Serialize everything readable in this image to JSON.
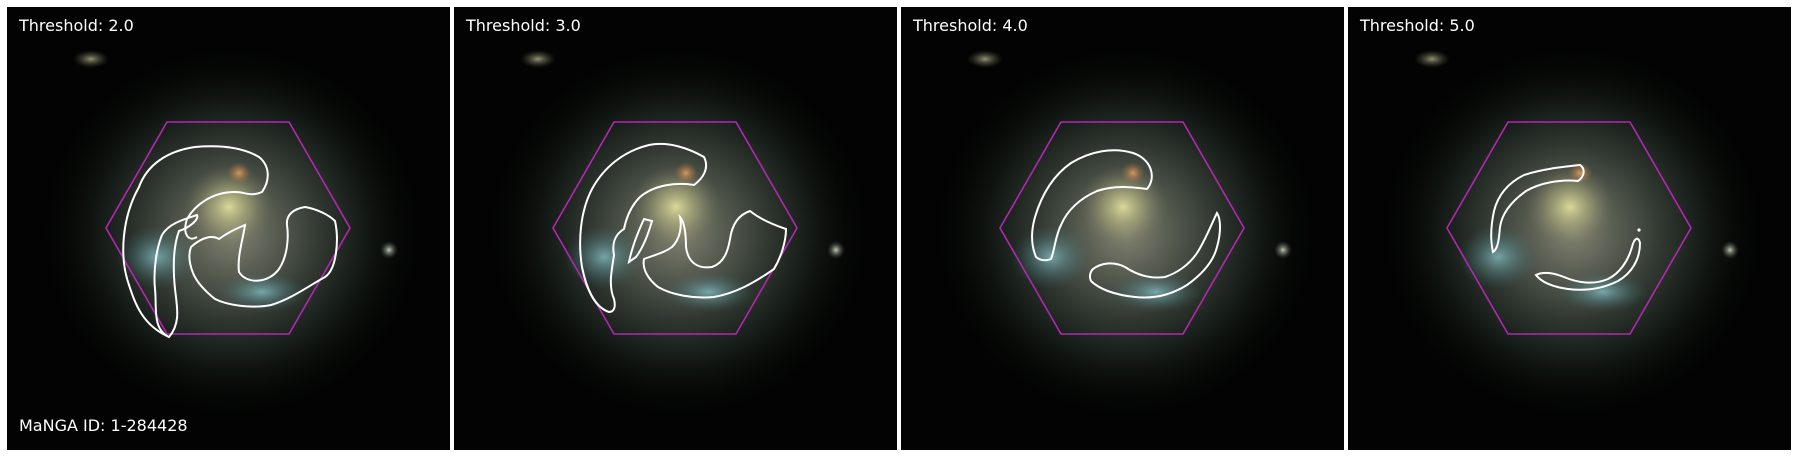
{
  "galaxy": {
    "id_label": "MaNGA ID: 1-284428"
  },
  "colors": {
    "hexagon": "#b327b3",
    "contour": "#ffffff",
    "background": "#000000"
  },
  "panels": [
    {
      "threshold_label": "Threshold: 2.0",
      "threshold": 2.0
    },
    {
      "threshold_label": "Threshold: 3.0",
      "threshold": 3.0
    },
    {
      "threshold_label": "Threshold: 4.0",
      "threshold": 4.0
    },
    {
      "threshold_label": "Threshold: 5.0",
      "threshold": 5.0
    }
  ]
}
